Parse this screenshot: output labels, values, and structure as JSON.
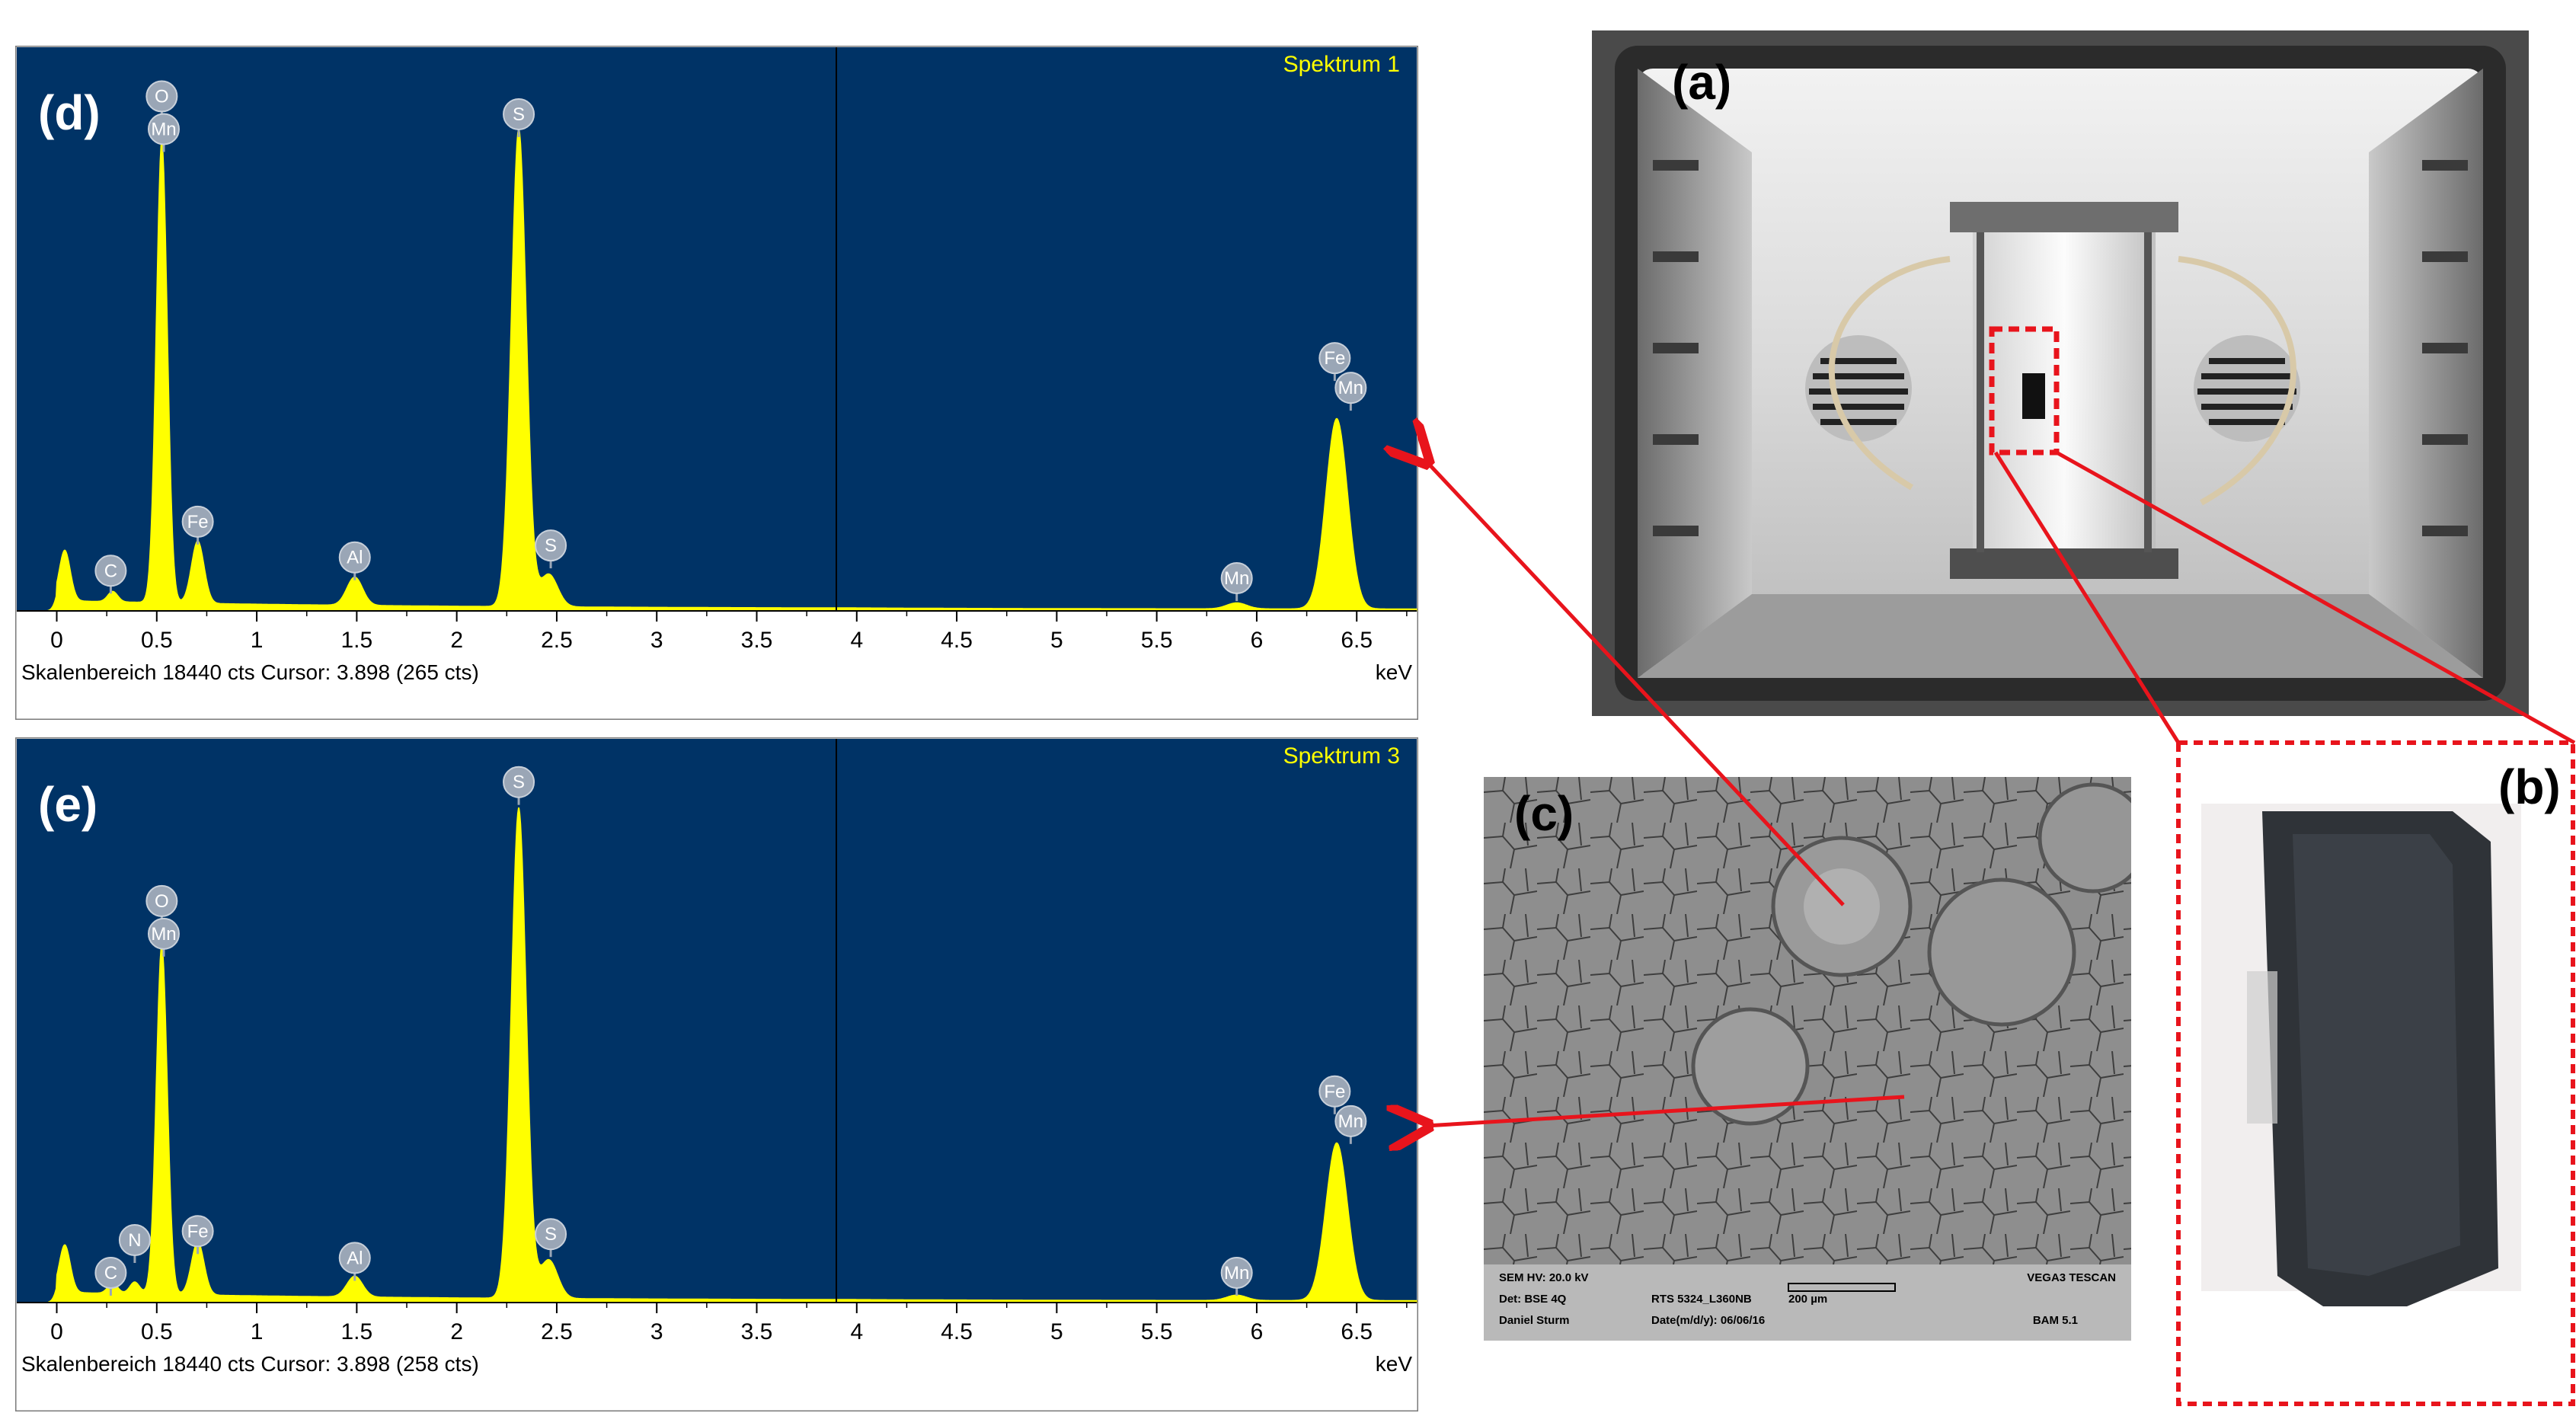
{
  "chart_data": [
    {
      "type": "line",
      "panel_label": "(d)",
      "spectrum_name": "Spektrum 1",
      "xlabel": "keV",
      "xlim": [
        -0.2,
        6.8
      ],
      "ylim": [
        0,
        18440
      ],
      "grid": false,
      "cursor_keV": 3.898,
      "xticks": [
        "0",
        "0.5",
        "1",
        "1.5",
        "2",
        "2.5",
        "3",
        "3.5",
        "4",
        "4.5",
        "5",
        "5.5",
        "6",
        "6.5"
      ],
      "footer": "Skalenbereich 18440 cts Cursor: 3.898  (265 cts)",
      "peaks": [
        {
          "keV": 0.04,
          "counts": 1700,
          "sigma": 0.028
        },
        {
          "keV": 0.28,
          "counts": 350,
          "sigma": 0.025
        },
        {
          "keV": 0.525,
          "counts": 15600,
          "sigma": 0.028
        },
        {
          "keV": 0.705,
          "counts": 2100,
          "sigma": 0.032
        },
        {
          "keV": 1.49,
          "counts": 950,
          "sigma": 0.04
        },
        {
          "keV": 2.31,
          "counts": 16100,
          "sigma": 0.038
        },
        {
          "keV": 2.46,
          "counts": 1100,
          "sigma": 0.045
        },
        {
          "keV": 5.9,
          "counts": 200,
          "sigma": 0.05
        },
        {
          "keV": 6.4,
          "counts": 6400,
          "sigma": 0.055
        }
      ],
      "element_labels": [
        {
          "text": "O",
          "keV": 0.525,
          "counts": 17300
        },
        {
          "text": "Mn",
          "keV": 0.535,
          "counts": 16200
        },
        {
          "text": "C",
          "keV": 0.27,
          "counts": 1350
        },
        {
          "text": "Fe",
          "keV": 0.705,
          "counts": 3000
        },
        {
          "text": "Al",
          "keV": 1.49,
          "counts": 1800
        },
        {
          "text": "S",
          "keV": 2.31,
          "counts": 16700
        },
        {
          "text": "S",
          "keV": 2.47,
          "counts": 2200
        },
        {
          "text": "Mn",
          "keV": 5.9,
          "counts": 1100
        },
        {
          "text": "Fe",
          "keV": 6.39,
          "counts": 8500
        },
        {
          "text": "Mn",
          "keV": 6.47,
          "counts": 7500
        }
      ]
    },
    {
      "type": "line",
      "panel_label": "(e)",
      "spectrum_name": "Spektrum 3",
      "xlabel": "keV",
      "xlim": [
        -0.2,
        6.8
      ],
      "ylim": [
        0,
        18440
      ],
      "grid": false,
      "cursor_keV": 3.898,
      "xticks": [
        "0",
        "0.5",
        "1",
        "1.5",
        "2",
        "2.5",
        "3",
        "3.5",
        "4",
        "4.5",
        "5",
        "5.5",
        "6",
        "6.5"
      ],
      "footer": "Skalenbereich 18440 cts Cursor: 3.898  (258 cts)",
      "peaks": [
        {
          "keV": 0.04,
          "counts": 1600,
          "sigma": 0.028
        },
        {
          "keV": 0.28,
          "counts": 350,
          "sigma": 0.025
        },
        {
          "keV": 0.39,
          "counts": 400,
          "sigma": 0.025
        },
        {
          "keV": 0.525,
          "counts": 11800,
          "sigma": 0.028
        },
        {
          "keV": 0.705,
          "counts": 1800,
          "sigma": 0.032
        },
        {
          "keV": 1.49,
          "counts": 700,
          "sigma": 0.04
        },
        {
          "keV": 2.31,
          "counts": 16500,
          "sigma": 0.038
        },
        {
          "keV": 2.46,
          "counts": 1300,
          "sigma": 0.045
        },
        {
          "keV": 5.9,
          "counts": 180,
          "sigma": 0.05
        },
        {
          "keV": 6.4,
          "counts": 5300,
          "sigma": 0.055
        }
      ],
      "element_labels": [
        {
          "text": "O",
          "keV": 0.525,
          "counts": 13500
        },
        {
          "text": "Mn",
          "keV": 0.535,
          "counts": 12400
        },
        {
          "text": "C",
          "keV": 0.27,
          "counts": 1000
        },
        {
          "text": "N",
          "keV": 0.39,
          "counts": 2100
        },
        {
          "text": "Fe",
          "keV": 0.705,
          "counts": 2400
        },
        {
          "text": "Al",
          "keV": 1.49,
          "counts": 1500
        },
        {
          "text": "S",
          "keV": 2.31,
          "counts": 17500
        },
        {
          "text": "S",
          "keV": 2.47,
          "counts": 2300
        },
        {
          "text": "Mn",
          "keV": 5.9,
          "counts": 1000
        },
        {
          "text": "Fe",
          "keV": 6.39,
          "counts": 7100
        },
        {
          "text": "Mn",
          "keV": 6.47,
          "counts": 6100
        }
      ]
    }
  ],
  "photos": {
    "a_label": "(a)",
    "b_label": "(b)",
    "c_label": "(c)",
    "sem_info": {
      "row1_left": "SEM HV: 20.0 kV",
      "row1_right": "VEGA3 TESCAN",
      "row2_left": "Det: BSE 4Q",
      "row2_mid": "RTS 5324_L360NB",
      "row2_scale": "200 µm",
      "row3_left": "Daniel Sturm",
      "row3_mid": "Date(m/d/y): 06/06/16",
      "row3_right": "BAM 5.1"
    }
  },
  "colors": {
    "plot_bg": "#003366",
    "peak_fill": "#ffff00",
    "arrow": "#e8141c",
    "label_bubble": "#9aa6b6"
  }
}
